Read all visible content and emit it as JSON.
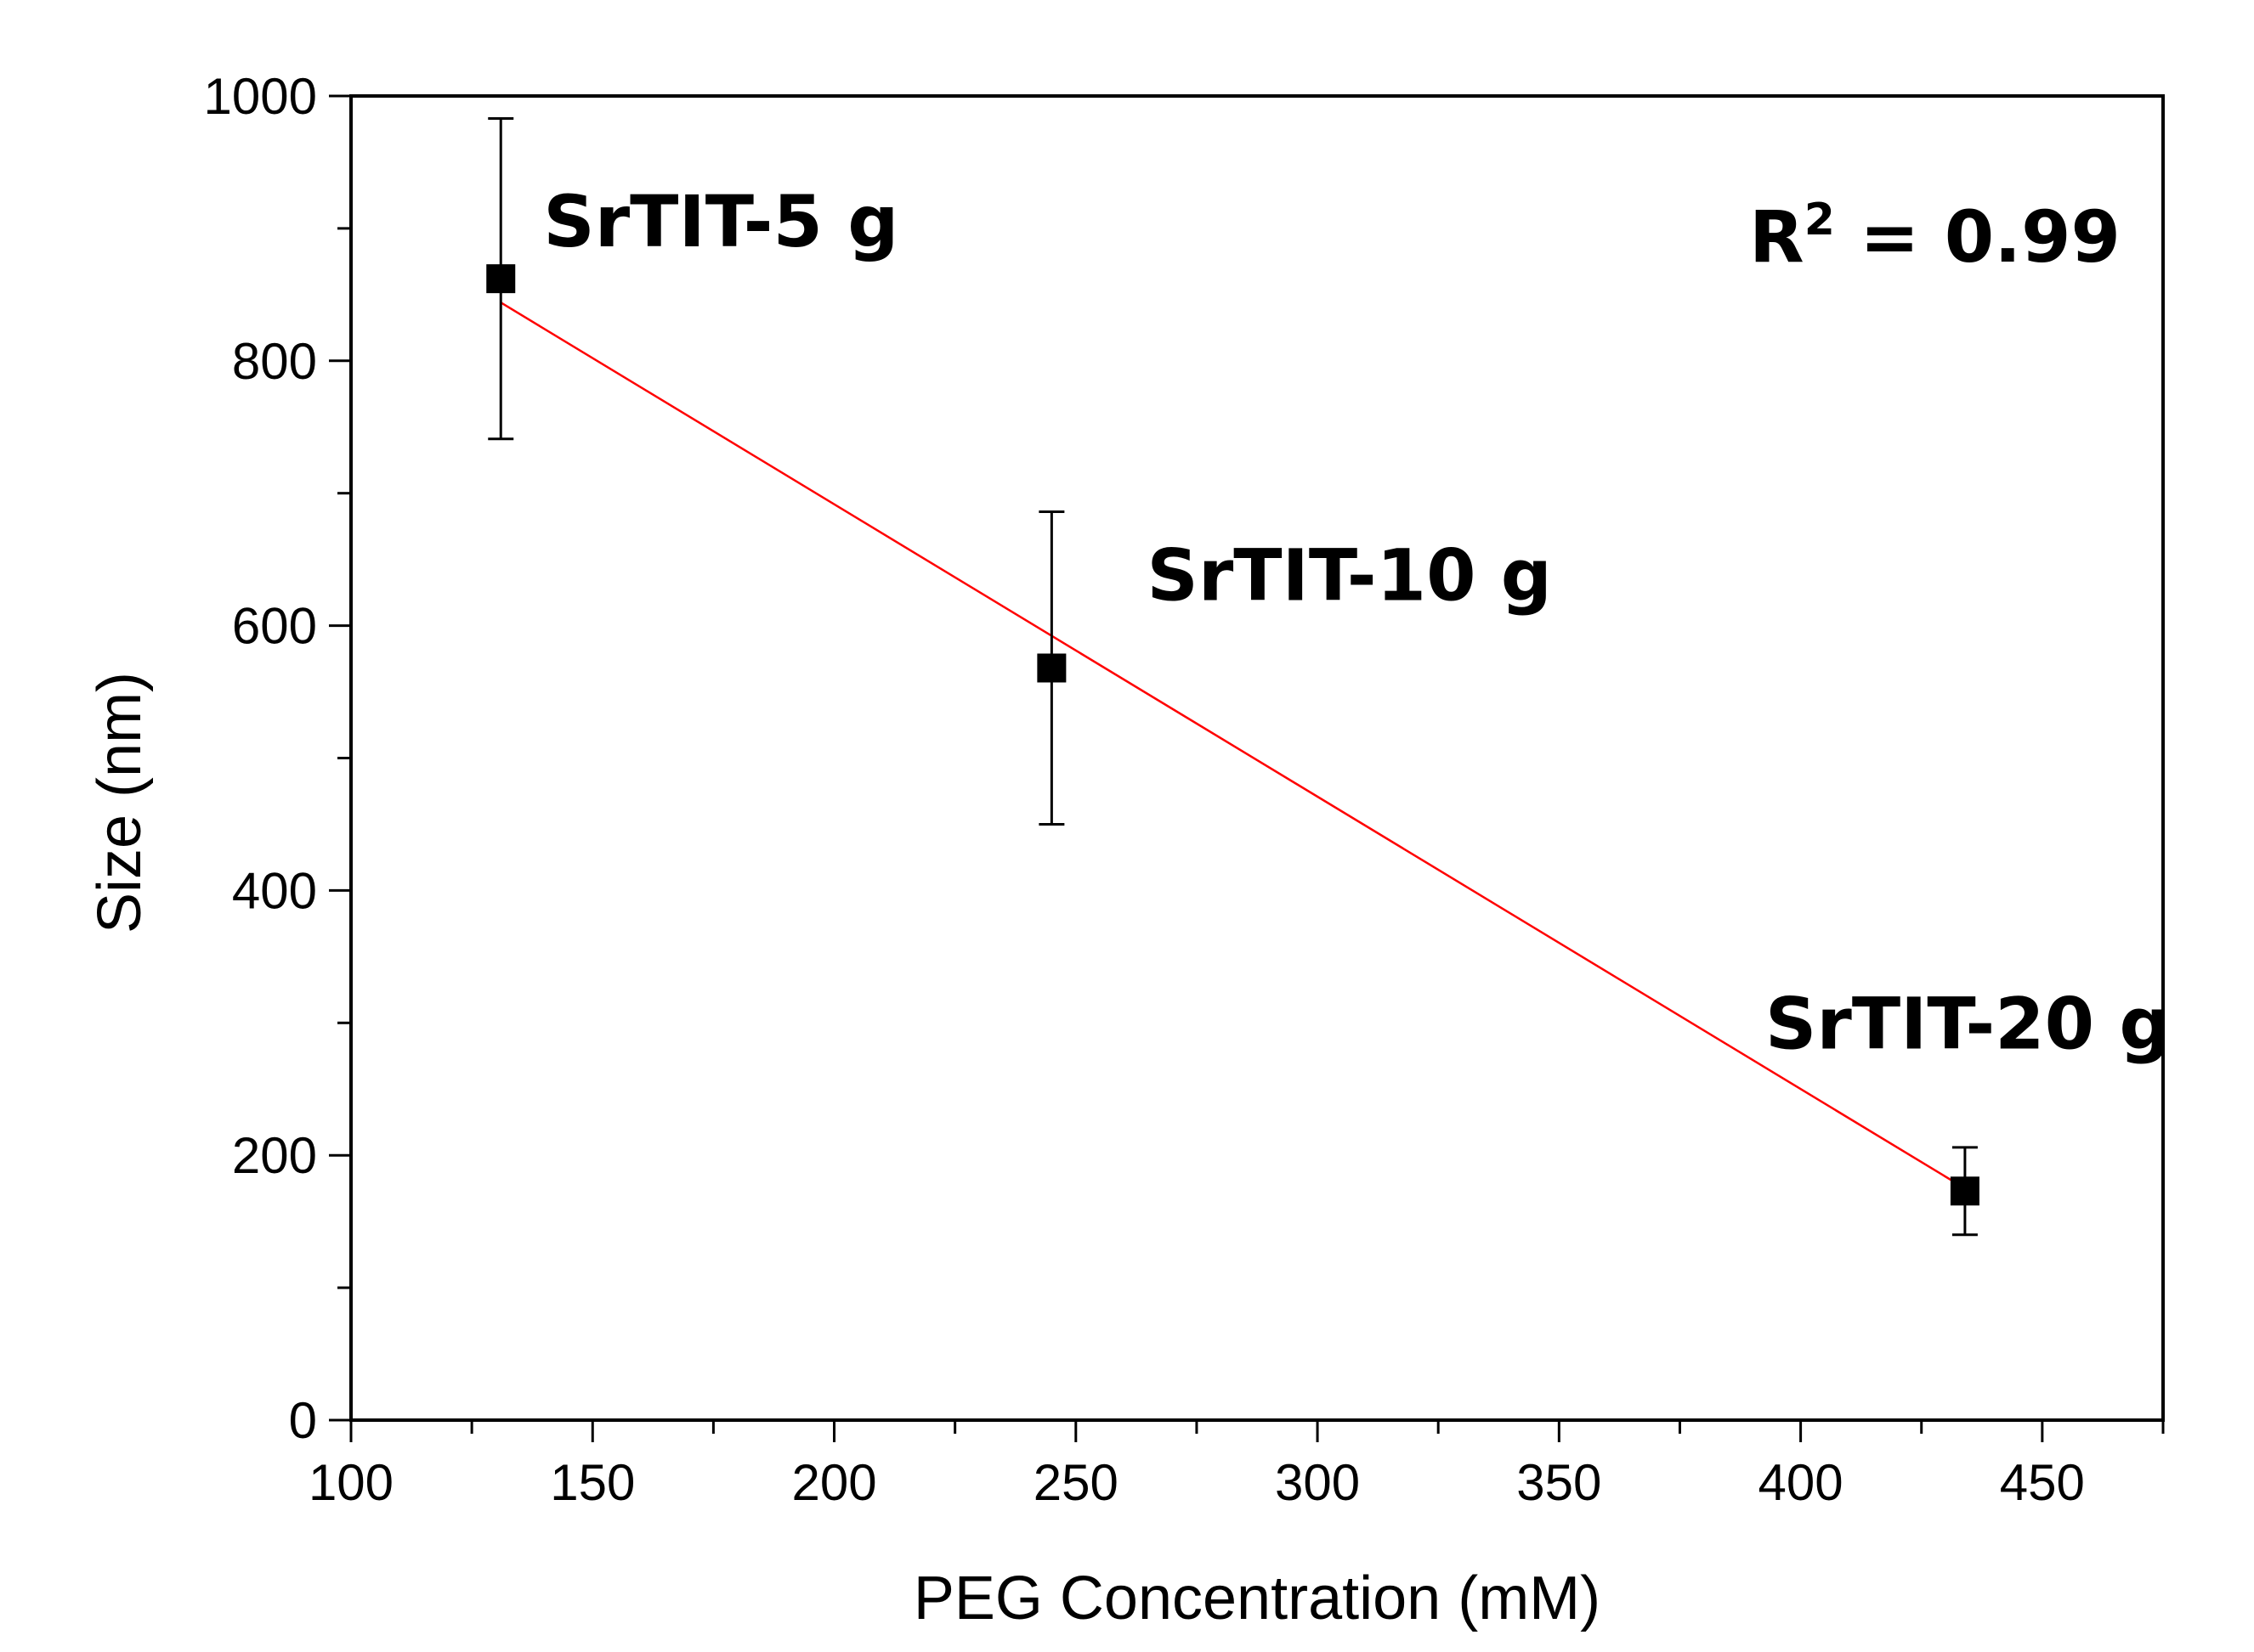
{
  "chart_data": {
    "type": "scatter",
    "title": "",
    "xlabel": "PEG Concentration (mM)",
    "ylabel": "Size (nm)",
    "xlim": [
      100,
      475
    ],
    "ylim": [
      0,
      1000
    ],
    "xticks": [
      100,
      150,
      200,
      250,
      300,
      350,
      400,
      450
    ],
    "yticks": [
      0,
      200,
      400,
      600,
      800,
      1000
    ],
    "grid": false,
    "series": [
      {
        "name": "Size",
        "x": [
          131,
          245,
          434
        ],
        "y": [
          862,
          568,
          173
        ],
        "err": [
          121,
          118,
          33
        ],
        "marker": "square",
        "color": "#000000"
      }
    ],
    "fit": {
      "type": "linear",
      "x": [
        131,
        434
      ],
      "y": [
        844,
        175
      ],
      "color": "#ff0000"
    },
    "point_labels": [
      {
        "text": "SrTIT-5 g",
        "x": 131,
        "y": 862
      },
      {
        "text": "SrTIT-10 g",
        "x": 245,
        "y": 568
      },
      {
        "text": "SrTIT-20 g",
        "x": 434,
        "y": 173
      }
    ],
    "r2_label": {
      "prefix": "R",
      "sup": "2",
      "suffix": " = 0.99"
    }
  }
}
